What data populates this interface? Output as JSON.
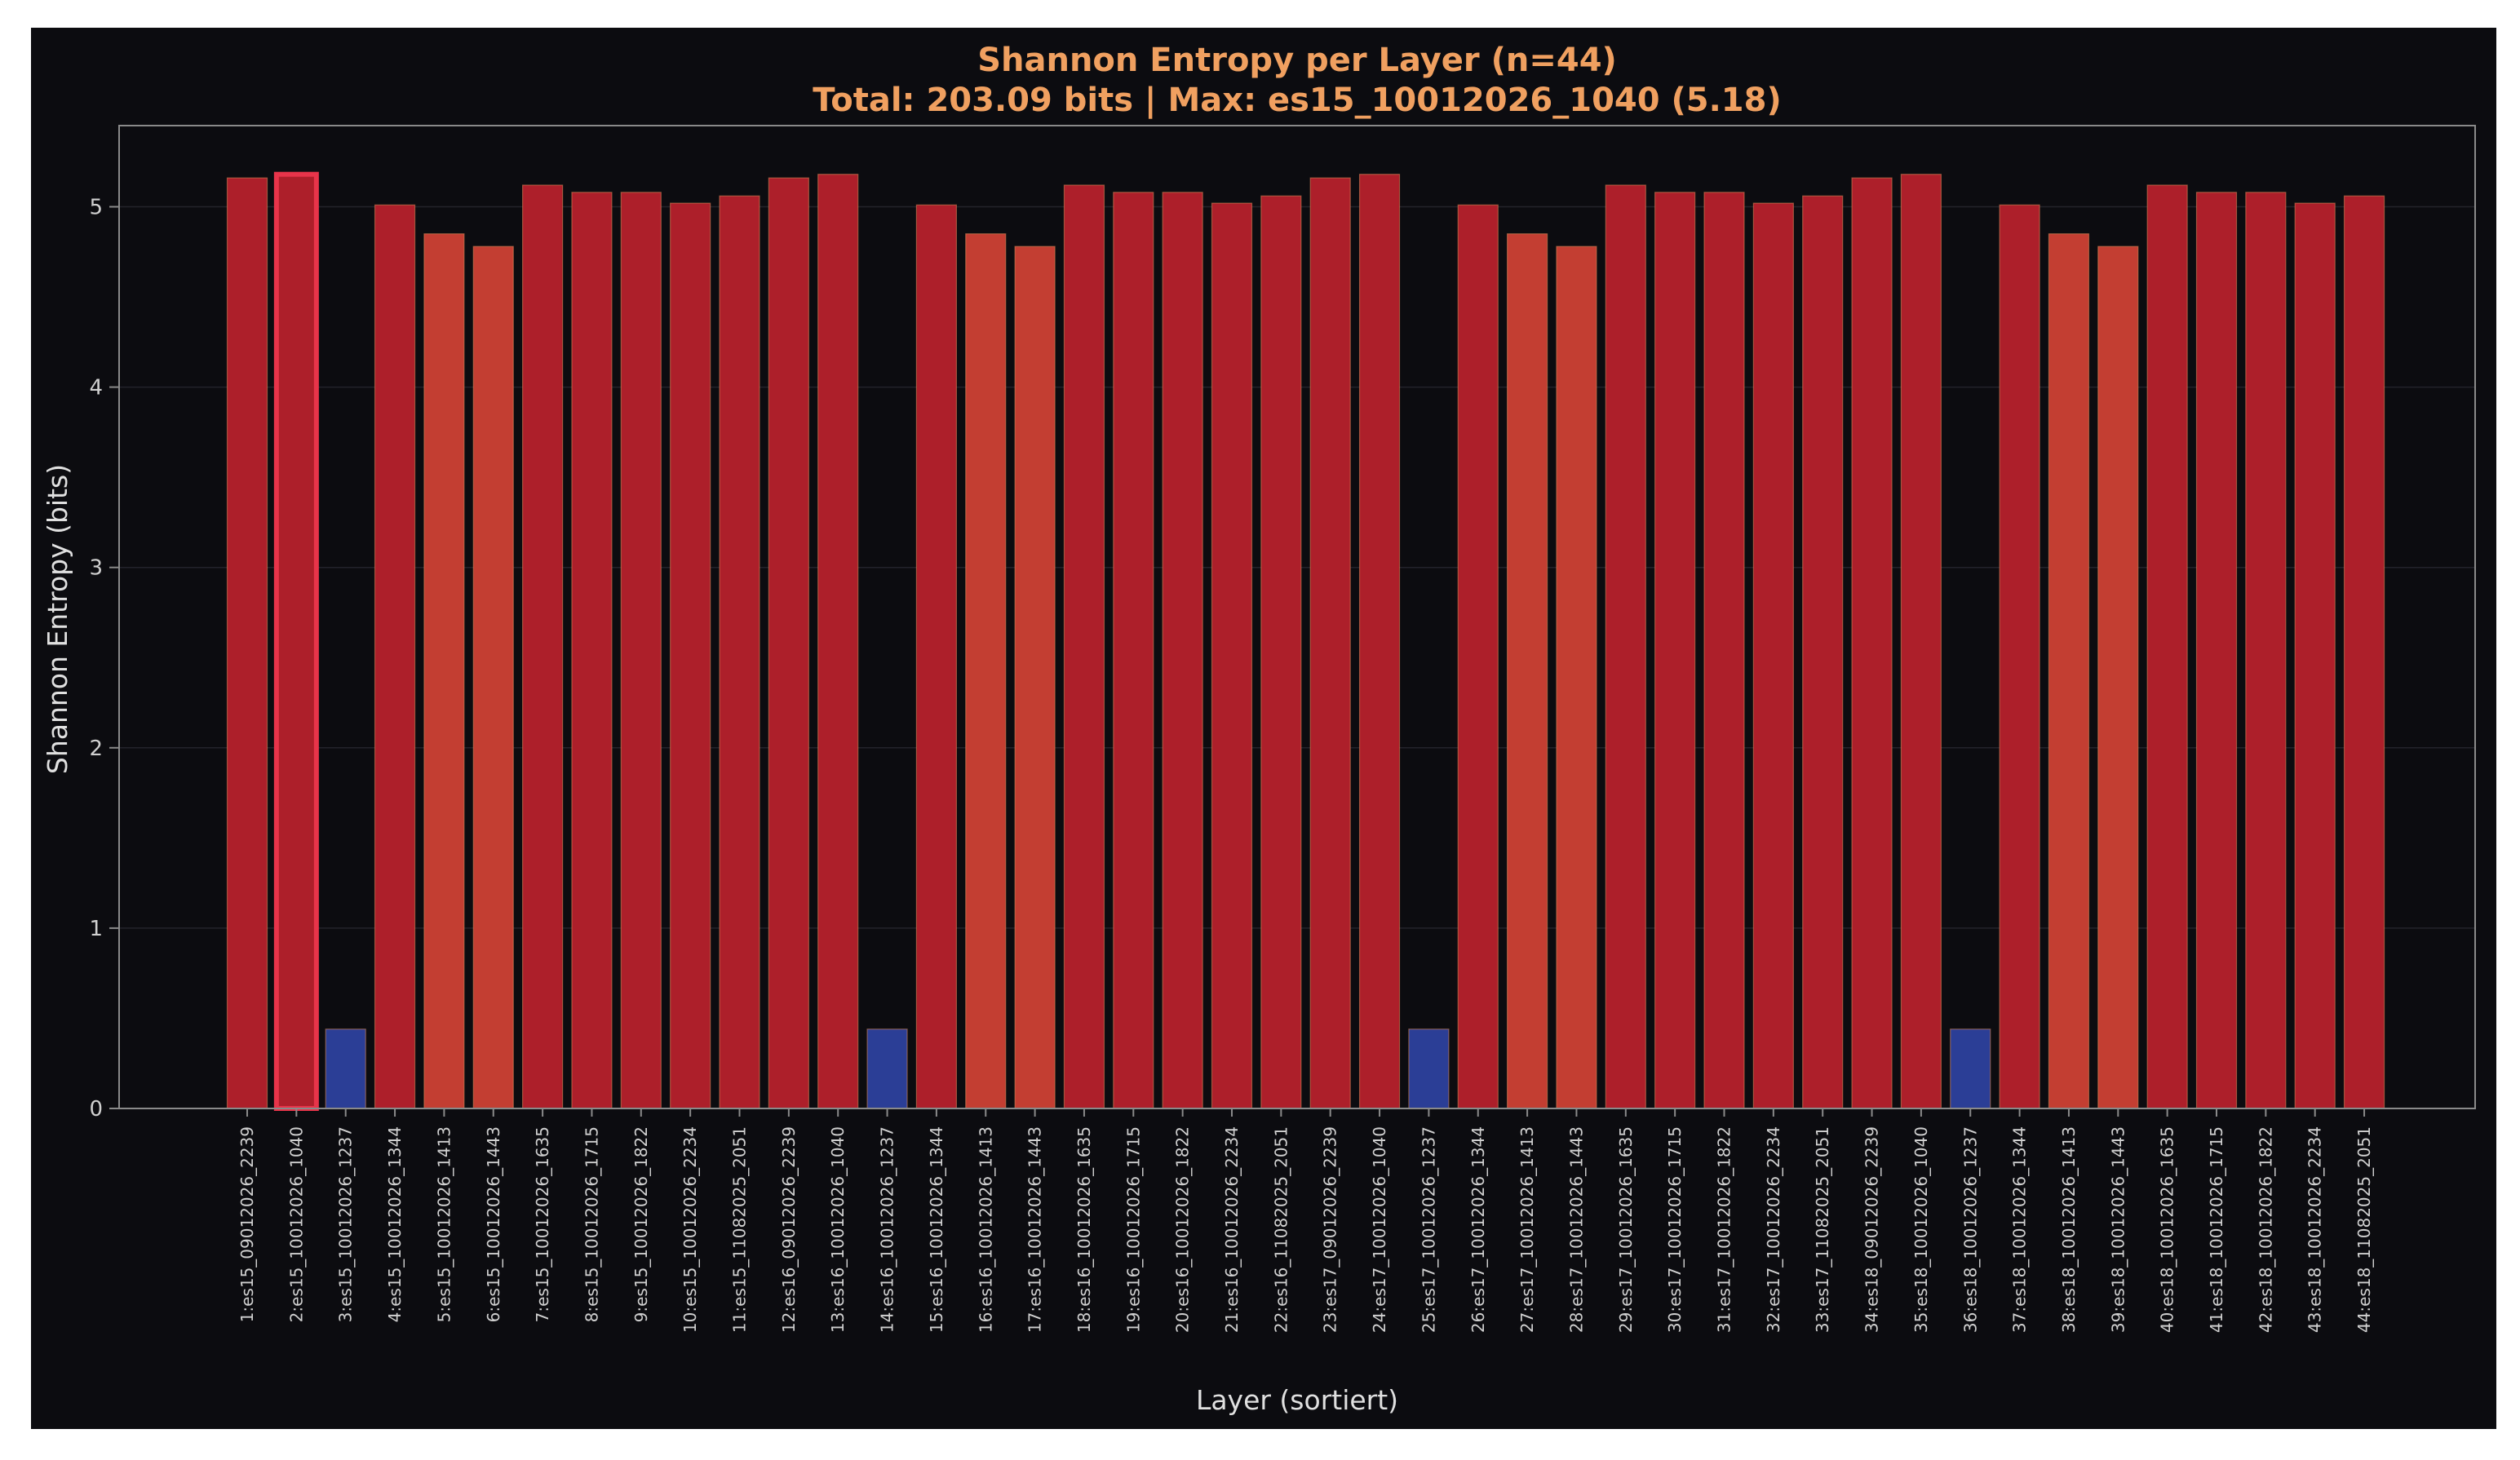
{
  "chart_data": {
    "type": "bar",
    "title": "Shannon Entropy per Layer (n=44)",
    "subtitle": "Total: 203.09 bits | Max: es15_10012026_1040 (5.18)",
    "xlabel": "Layer (sortiert)",
    "ylabel": "Shannon Entropy (bits)",
    "ylim": [
      0,
      5.45
    ],
    "yticks": [
      0,
      1,
      2,
      3,
      4,
      5
    ],
    "highlight_index": 1,
    "colors": {
      "high": "#ad1f2a",
      "mid": "#c33e32",
      "low": "#2b3e96",
      "highlight_edge": "#e8344a",
      "grid": "#23232b",
      "axis": "#8a8a8a",
      "bar_edge": "#d8885a"
    },
    "categories": [
      "1:es15_09012026_2239",
      "2:es15_10012026_1040",
      "3:es15_10012026_1237",
      "4:es15_10012026_1344",
      "5:es15_10012026_1413",
      "6:es15_10012026_1443",
      "7:es15_10012026_1635",
      "8:es15_10012026_1715",
      "9:es15_10012026_1822",
      "10:es15_10012026_2234",
      "11:es15_11082025_2051",
      "12:es16_09012026_2239",
      "13:es16_10012026_1040",
      "14:es16_10012026_1237",
      "15:es16_10012026_1344",
      "16:es16_10012026_1413",
      "17:es16_10012026_1443",
      "18:es16_10012026_1635",
      "19:es16_10012026_1715",
      "20:es16_10012026_1822",
      "21:es16_10012026_2234",
      "22:es16_11082025_2051",
      "23:es17_09012026_2239",
      "24:es17_10012026_1040",
      "25:es17_10012026_1237",
      "26:es17_10012026_1344",
      "27:es17_10012026_1413",
      "28:es17_10012026_1443",
      "29:es17_10012026_1635",
      "30:es17_10012026_1715",
      "31:es17_10012026_1822",
      "32:es17_10012026_2234",
      "33:es17_11082025_2051",
      "34:es18_09012026_2239",
      "35:es18_10012026_1040",
      "36:es18_10012026_1237",
      "37:es18_10012026_1344",
      "38:es18_10012026_1413",
      "39:es18_10012026_1443",
      "40:es18_10012026_1635",
      "41:es18_10012026_1715",
      "42:es18_10012026_1822",
      "43:es18_10012026_2234",
      "44:es18_11082025_2051"
    ],
    "values": [
      5.16,
      5.18,
      0.44,
      5.01,
      4.85,
      4.78,
      5.12,
      5.08,
      5.08,
      5.02,
      5.06,
      5.16,
      5.18,
      0.44,
      5.01,
      4.85,
      4.78,
      5.12,
      5.08,
      5.08,
      5.02,
      5.06,
      5.16,
      5.18,
      0.44,
      5.01,
      4.85,
      4.78,
      5.12,
      5.08,
      5.08,
      5.02,
      5.06,
      5.16,
      5.18,
      0.44,
      5.01,
      4.85,
      4.78,
      5.12,
      5.08,
      5.08,
      5.02,
      5.06
    ]
  }
}
